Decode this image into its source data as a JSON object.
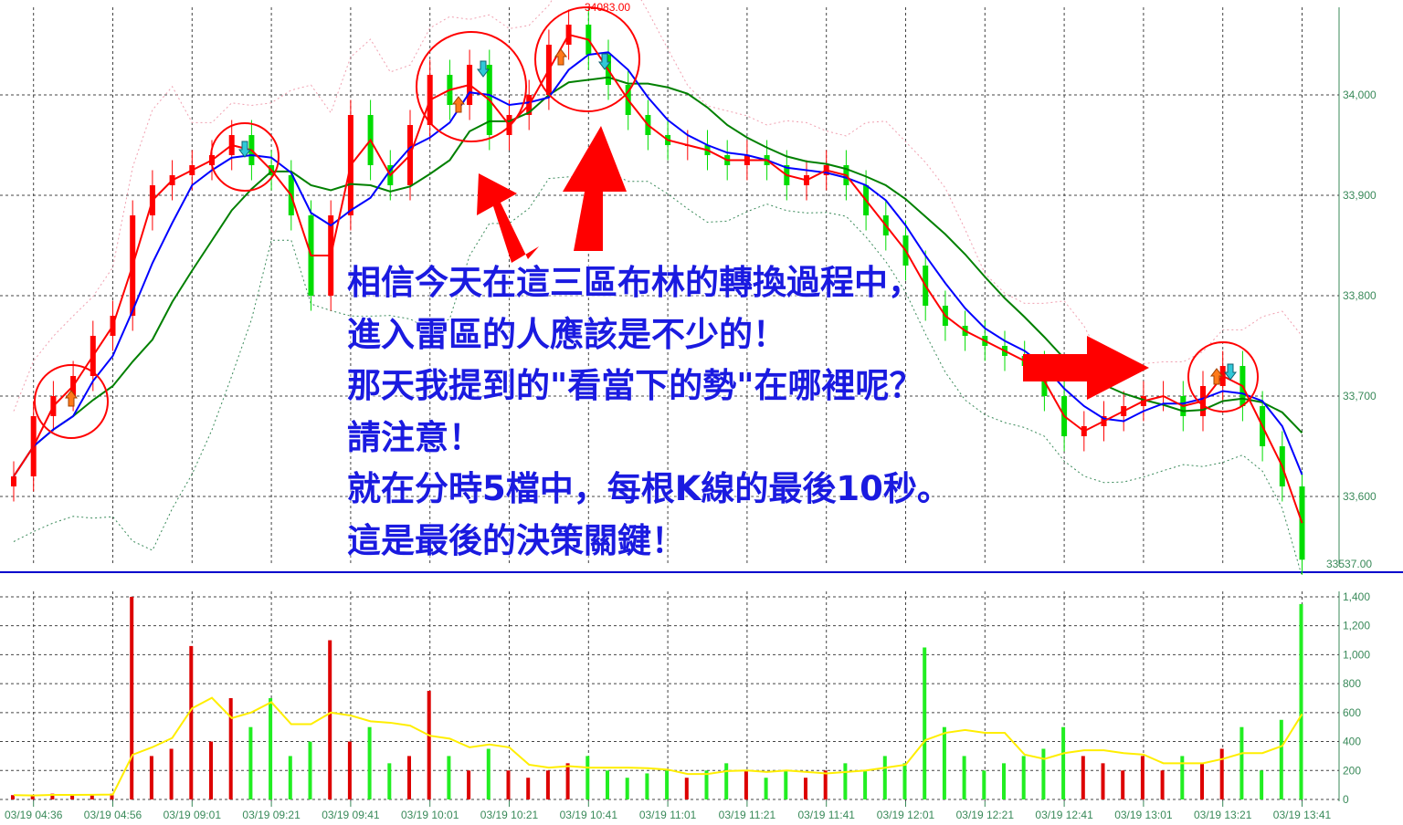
{
  "chart_data": {
    "type": "candlestick",
    "price_axis": {
      "ticks": [
        33600,
        33700,
        33800,
        33900,
        34000
      ],
      "tick_labels": [
        "33,600",
        "33,700",
        "33,800",
        "33,900",
        "34,000"
      ]
    },
    "high_label": "34083.00",
    "high": 34083,
    "last_label": "33537.00",
    "last": 33537,
    "x_tick_labels": [
      "03/19 04:36",
      "03/19 04:56",
      "03/19 09:01",
      "03/19 09:21",
      "03/19 09:41",
      "03/19 10:01",
      "03/19 10:21",
      "03/19 10:41",
      "03/19 11:01",
      "03/19 11:21",
      "03/19 11:41",
      "03/19 12:01",
      "03/19 12:21",
      "03/19 12:41",
      "03/19 13:01",
      "03/19 13:21",
      "03/19 13:41"
    ],
    "close": [
      33620,
      33680,
      33700,
      33720,
      33760,
      33780,
      33880,
      33910,
      33920,
      33930,
      33940,
      33960,
      33930,
      33920,
      33880,
      33800,
      33880,
      33980,
      33930,
      33910,
      33970,
      34020,
      33990,
      34030,
      33960,
      33980,
      34000,
      34050,
      34070,
      34040,
      34010,
      33980,
      33960,
      33950,
      33950,
      33940,
      33930,
      33940,
      33930,
      33910,
      33920,
      33930,
      33910,
      33880,
      33860,
      33830,
      33790,
      33770,
      33760,
      33750,
      33740,
      33730,
      33700,
      33660,
      33670,
      33680,
      33690,
      33700,
      33700,
      33680,
      33710,
      33730,
      33690,
      33650,
      33610,
      33537
    ],
    "volume": [
      30,
      25,
      40,
      30,
      35,
      40,
      1400,
      300,
      350,
      1060,
      400,
      700,
      500,
      700,
      300,
      400,
      1100,
      400,
      500,
      250,
      300,
      750,
      300,
      200,
      350,
      200,
      150,
      200,
      250,
      300,
      200,
      150,
      180,
      200,
      150,
      200,
      250,
      200,
      150,
      200,
      150,
      200,
      250,
      200,
      300,
      250,
      1050,
      500,
      300,
      200,
      250,
      300,
      350,
      500,
      300,
      250,
      200,
      300,
      200,
      300,
      250,
      350,
      500,
      200,
      550,
      1350
    ],
    "volume_axis": {
      "ticks": [
        0,
        200,
        400,
        600,
        800,
        1000,
        1200,
        1400
      ],
      "tick_labels": [
        "0",
        "200",
        "400",
        "600",
        "800",
        "1,000",
        "1,200",
        "1,400"
      ]
    },
    "colors": {
      "up": "#ff0000",
      "down": "#00dd00",
      "ma_short": "#ff0000",
      "ma_mid": "#0000ff",
      "ma_long": "#008000",
      "vol_ma": "#ffee00",
      "axis": "#3a8a5a"
    },
    "grid": true
  },
  "annotation": {
    "lines": [
      "相信今天在這三區布林的轉換過程中，",
      "進入雷區的人應該是不少的！",
      "那天我提到的\"看當下的勢\"在哪裡呢？",
      "請注意！",
      "就在分時5檔中，每根K線的最後10秒。",
      "這是最後的決策關鍵！"
    ],
    "color": "#1a1ae0"
  }
}
